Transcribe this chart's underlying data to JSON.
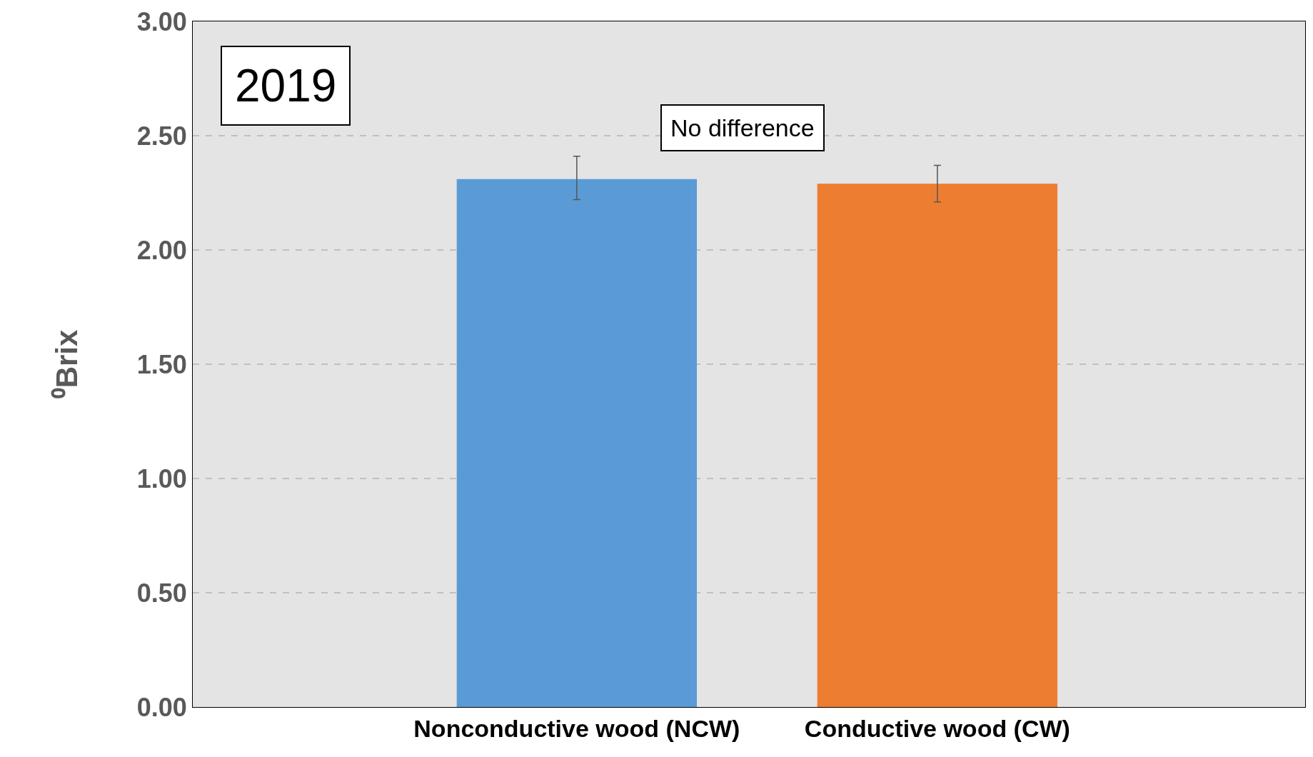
{
  "chart_data": {
    "type": "bar",
    "ylabel": "⁰Brix",
    "categories": [
      "Nonconductive wood (NCW)",
      "Conductive wood (CW)"
    ],
    "values": [
      2.31,
      2.29
    ],
    "colors": [
      "#5b9bd5",
      "#ed7d31"
    ],
    "errors": [
      [
        2.22,
        2.41
      ],
      [
        2.21,
        2.37
      ]
    ],
    "ylim": [
      0,
      3
    ],
    "yticks": [
      {
        "value": 0,
        "label": "0.00"
      },
      {
        "value": 0.5,
        "label": "0.50"
      },
      {
        "value": 1,
        "label": "1.00"
      },
      {
        "value": 1.5,
        "label": "1.50"
      },
      {
        "value": 2,
        "label": "2.00"
      },
      {
        "value": 2.5,
        "label": "2.50"
      },
      {
        "value": 3,
        "label": "3.00"
      }
    ],
    "grid": "y",
    "annotations": [
      "2019",
      "No difference"
    ]
  }
}
